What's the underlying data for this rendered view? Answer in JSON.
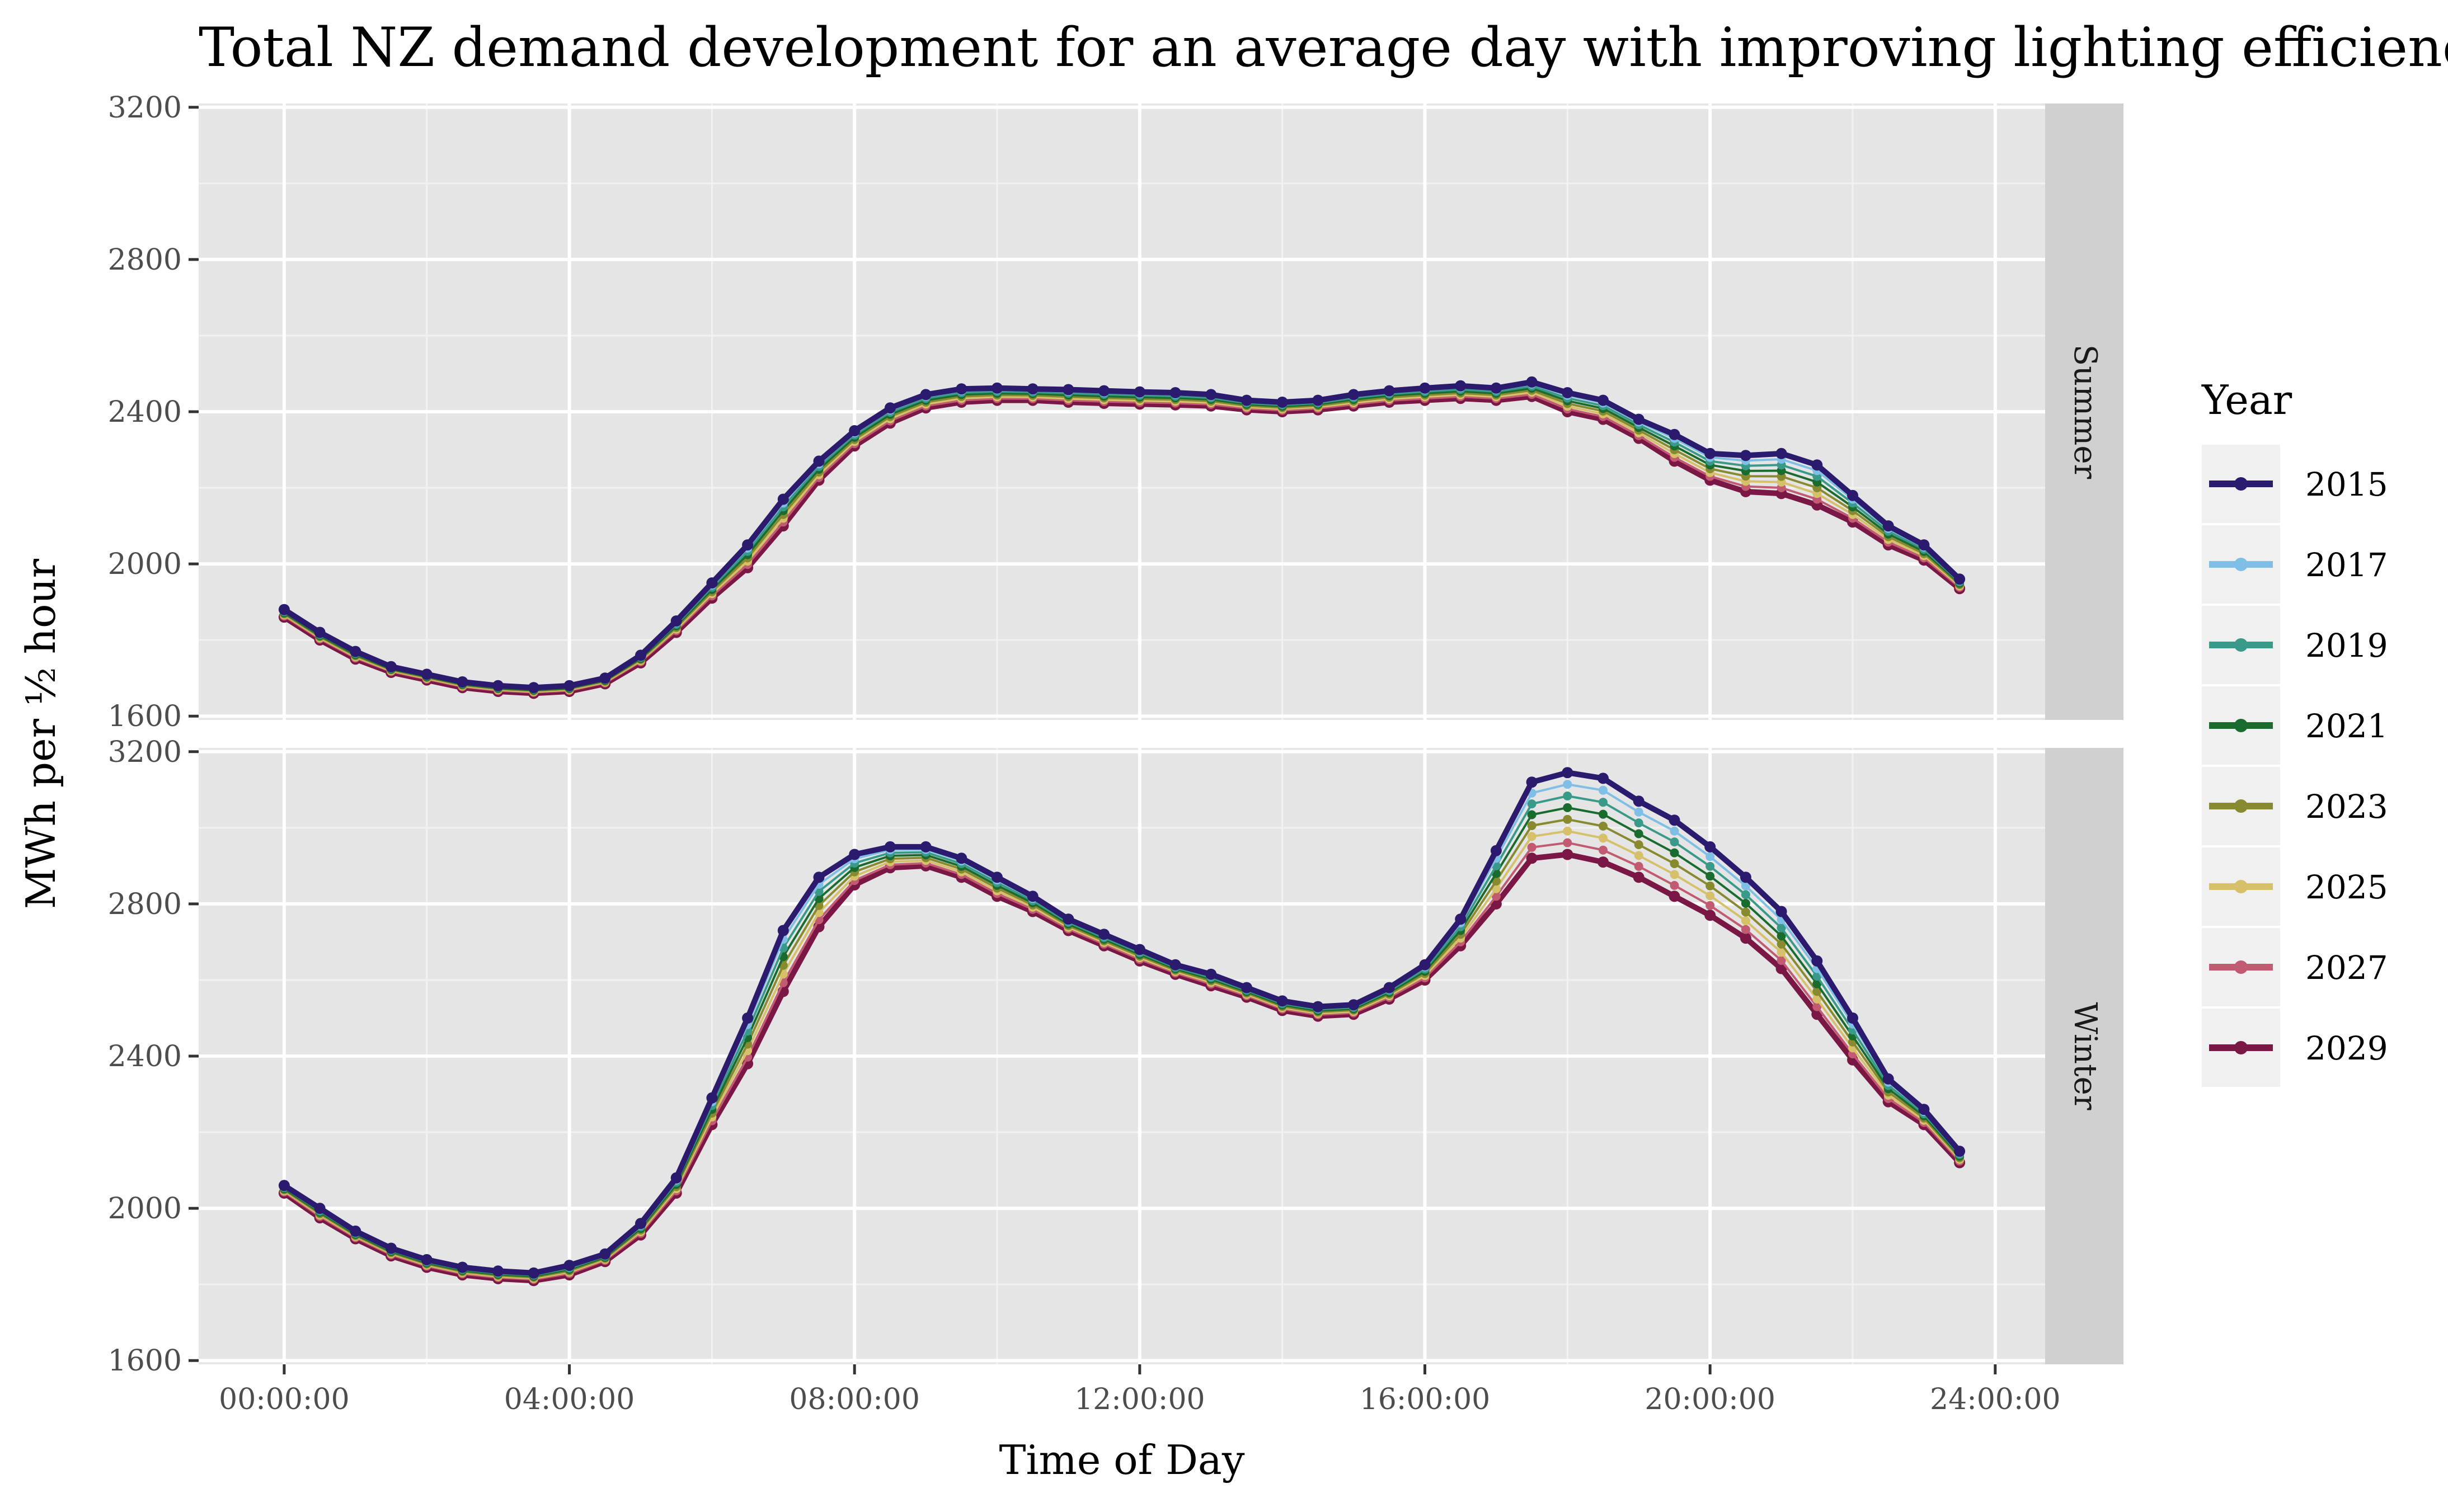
{
  "chart_data": {
    "type": "line",
    "title": "Total NZ demand development for an average day with improving lighting efficiency -",
    "xlabel": "Time of Day",
    "ylabel": "MWh per ½ hour",
    "x_tick_labels": [
      "00:00:00",
      "04:00:00",
      "08:00:00",
      "12:00:00",
      "16:00:00",
      "20:00:00",
      "24:00:00"
    ],
    "x_ticks_hours": [
      0,
      4,
      8,
      12,
      16,
      20,
      24
    ],
    "x_range_hours": [
      -1.2,
      24.7
    ],
    "y_ticks": [
      1600,
      2000,
      2400,
      2800,
      3200
    ],
    "ylim": [
      1590,
      3210
    ],
    "legend": {
      "title": "Year",
      "position": "right"
    },
    "years": [
      "2015",
      "2017",
      "2019",
      "2021",
      "2023",
      "2025",
      "2027",
      "2029"
    ],
    "colors": {
      "2015": "#2b1a6e",
      "2017": "#7fbfe6",
      "2019": "#3a9a8a",
      "2021": "#1a6b2e",
      "2023": "#878a2e",
      "2025": "#d6c06a",
      "2027": "#c25a72",
      "2029": "#7a1745"
    },
    "grid": true,
    "facets": [
      {
        "name": "Summer",
        "x_hours_start": 0,
        "x_step_hours": 0.5,
        "series_2015": [
          1880,
          1820,
          1770,
          1730,
          1710,
          1690,
          1680,
          1675,
          1680,
          1700,
          1760,
          1850,
          1950,
          2050,
          2170,
          2270,
          2350,
          2410,
          2445,
          2460,
          2462,
          2460,
          2458,
          2455,
          2452,
          2450,
          2445,
          2430,
          2425,
          2430,
          2445,
          2455,
          2462,
          2468,
          2462,
          2478,
          2450,
          2430,
          2380,
          2340,
          2290,
          2285,
          2290,
          2260,
          2180,
          2100,
          2050,
          1960
        ],
        "series_2029": [
          1860,
          1800,
          1750,
          1715,
          1695,
          1675,
          1665,
          1660,
          1665,
          1685,
          1740,
          1820,
          1910,
          1990,
          2100,
          2220,
          2310,
          2370,
          2410,
          2425,
          2430,
          2430,
          2425,
          2422,
          2420,
          2418,
          2415,
          2405,
          2400,
          2405,
          2415,
          2425,
          2430,
          2435,
          2430,
          2440,
          2400,
          2380,
          2330,
          2270,
          2220,
          2190,
          2185,
          2155,
          2110,
          2050,
          2010,
          1935
        ]
      },
      {
        "name": "Winter",
        "x_hours_start": 0,
        "x_step_hours": 0.5,
        "series_2015": [
          2060,
          2000,
          1940,
          1895,
          1865,
          1845,
          1835,
          1830,
          1850,
          1880,
          1960,
          2080,
          2290,
          2500,
          2730,
          2870,
          2930,
          2950,
          2950,
          2920,
          2870,
          2820,
          2760,
          2720,
          2680,
          2640,
          2615,
          2580,
          2545,
          2530,
          2535,
          2580,
          2640,
          2760,
          2940,
          3120,
          3145,
          3130,
          3070,
          3020,
          2950,
          2870,
          2780,
          2650,
          2500,
          2340,
          2260,
          2150
        ],
        "series_2029": [
          2040,
          1975,
          1920,
          1875,
          1845,
          1825,
          1815,
          1810,
          1825,
          1860,
          1930,
          2040,
          2220,
          2380,
          2570,
          2740,
          2850,
          2895,
          2900,
          2870,
          2820,
          2780,
          2730,
          2690,
          2650,
          2615,
          2585,
          2555,
          2520,
          2505,
          2510,
          2550,
          2600,
          2690,
          2800,
          2920,
          2930,
          2910,
          2870,
          2820,
          2770,
          2710,
          2630,
          2510,
          2390,
          2280,
          2220,
          2120
        ]
      }
    ]
  }
}
